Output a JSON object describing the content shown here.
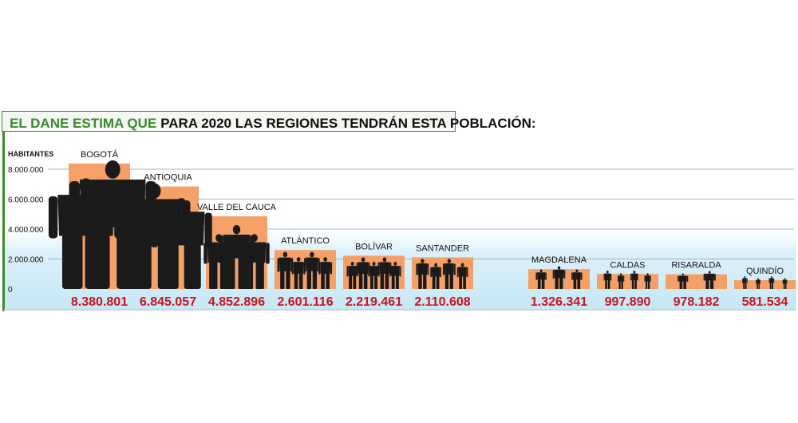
{
  "chart_data": {
    "type": "bar",
    "title_highlight": "EL DANE ESTIMA QUE",
    "title_rest": "PARA 2020 LAS REGIONES TENDRÁN ESTA POBLACIÓN:",
    "ylabel": "HABITANTES",
    "ylim": [
      0,
      8000000
    ],
    "yticks": [
      0,
      2000000,
      4000000,
      6000000,
      8000000
    ],
    "ytick_labels": [
      "0",
      "2.000.000",
      "4.000.000",
      "6.000.000",
      "8.000.000"
    ],
    "categories": [
      "BOGOTÁ",
      "ANTIOQUIA",
      "VALLE DEL CAUCA",
      "ATLÁNTICO",
      "BOLÍVAR",
      "SANTANDER",
      "MAGDALENA",
      "CALDAS",
      "RISARALDA",
      "QUINDÍO"
    ],
    "values": [
      8380801,
      6845057,
      4852896,
      2601116,
      2219461,
      2110608,
      1326341,
      997890,
      978182,
      581534
    ],
    "value_labels": [
      "8.380.801",
      "6.845.057",
      "4.852.896",
      "2.601.116",
      "2.219.461",
      "2.110.608",
      "1.326.341",
      "997.890",
      "978.182",
      "581.534"
    ],
    "people_per_bar": [
      2,
      2,
      3,
      4,
      5,
      4,
      3,
      4,
      2,
      4
    ],
    "grid": true,
    "colors": {
      "bar": "#F4A066",
      "value_text": "#C8141E",
      "title_green": "#3A8A2E",
      "band": "#CDEBF7",
      "silhouette": "#1A1A1A"
    }
  }
}
